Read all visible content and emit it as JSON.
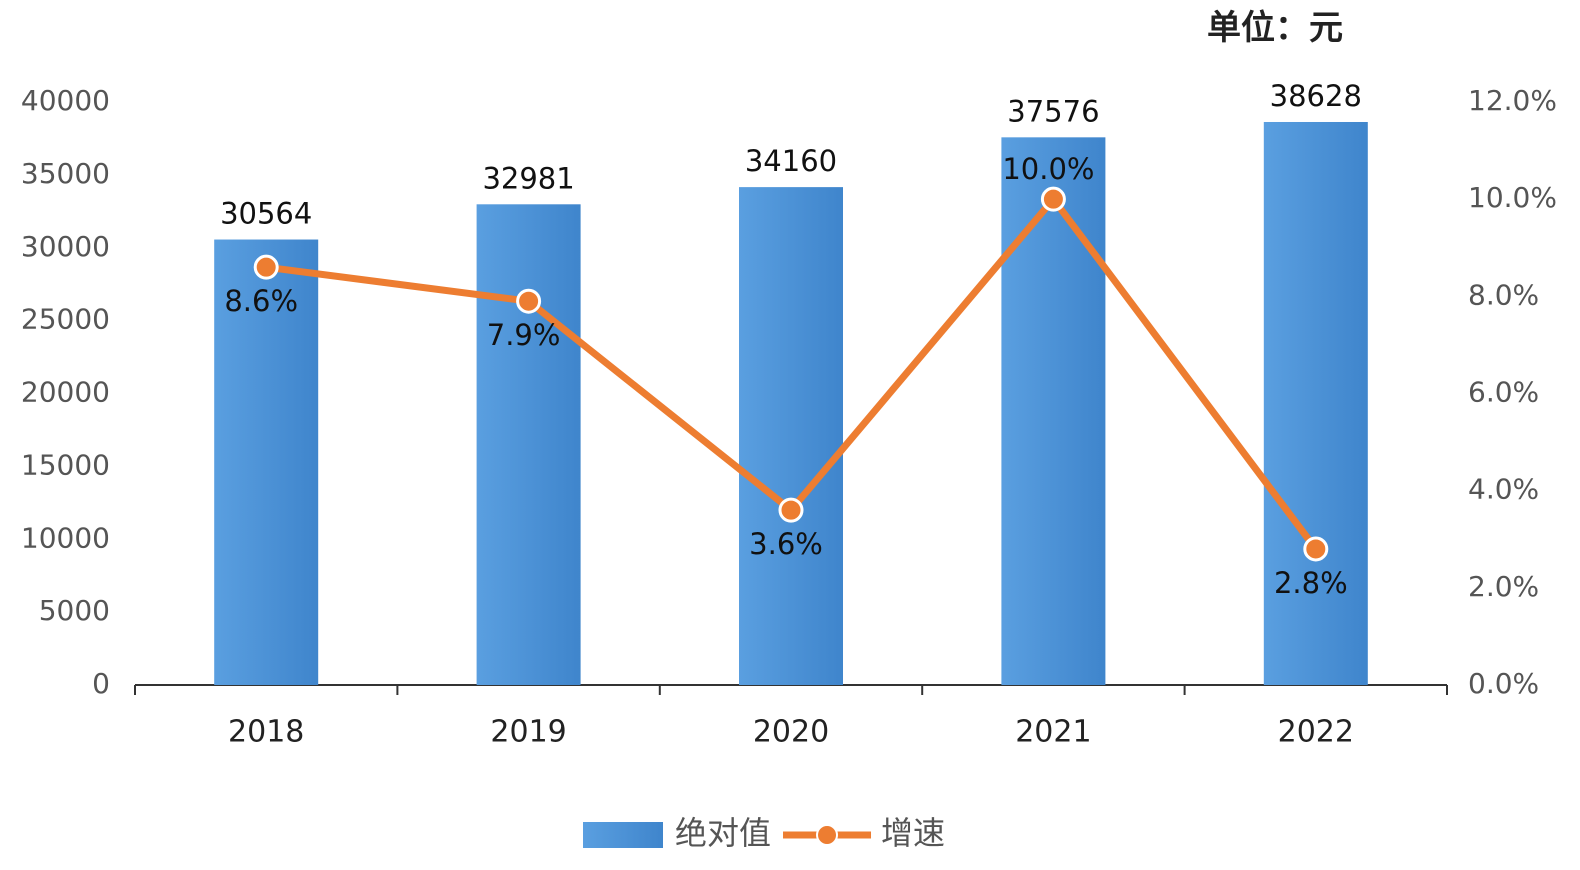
{
  "chart_data": {
    "type": "combo",
    "annotation": "单位：元",
    "categories": [
      "2018",
      "2019",
      "2020",
      "2021",
      "2022"
    ],
    "series": [
      {
        "name": "绝对值",
        "type": "bar",
        "color": "#4a8fd4",
        "values": [
          30564,
          32981,
          34160,
          37576,
          38628
        ]
      },
      {
        "name": "增速",
        "type": "line",
        "axis": "y2",
        "color": "#ed7d31",
        "values": [
          8.6,
          7.9,
          3.6,
          10.0,
          2.8
        ],
        "value_labels": [
          "8.6%",
          "7.9%",
          "3.6%",
          "10.0%",
          "2.8%"
        ]
      }
    ],
    "ylim": [
      0,
      40000
    ],
    "yticks": [
      0,
      5000,
      10000,
      15000,
      20000,
      25000,
      30000,
      35000,
      40000
    ],
    "y2lim": [
      0,
      12
    ],
    "y2ticks": [
      {
        "value": 0,
        "label": "0.0%"
      },
      {
        "value": 2,
        "label": "2.0%"
      },
      {
        "value": 4,
        "label": "4.0%"
      },
      {
        "value": 6,
        "label": "6.0%"
      },
      {
        "value": 8,
        "label": "8.0%"
      },
      {
        "value": 10,
        "label": "10.0%"
      },
      {
        "value": 12,
        "label": "12.0%"
      }
    ],
    "legend": "bottom"
  }
}
